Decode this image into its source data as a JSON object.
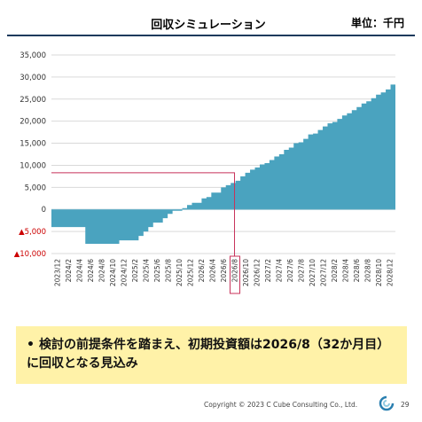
{
  "header": {
    "title": "回収シミュレーション",
    "unit": "単位：千円"
  },
  "chart_data": {
    "type": "area",
    "title": "回収シミュレーション",
    "unit_label": "単位：千円",
    "x_ticks": [
      "2023/12",
      "2024/2",
      "2024/4",
      "2024/6",
      "2024/8",
      "2024/10",
      "2024/12",
      "2025/2",
      "2025/4",
      "2025/6",
      "2025/8",
      "2025/10",
      "2025/12",
      "2026/2",
      "2026/4",
      "2026/6",
      "2026/8",
      "2026/10",
      "2026/12",
      "2027/2",
      "2027/4",
      "2027/6",
      "2027/8",
      "2027/10",
      "2027/12",
      "2028/2",
      "2028/4",
      "2028/6",
      "2028/8",
      "2028/10",
      "2028/12"
    ],
    "y_ticks": [
      {
        "value": 35000,
        "label": "35,000",
        "color": "#333333"
      },
      {
        "value": 30000,
        "label": "30,000",
        "color": "#333333"
      },
      {
        "value": 25000,
        "label": "25,000",
        "color": "#333333"
      },
      {
        "value": 20000,
        "label": "20,000",
        "color": "#333333"
      },
      {
        "value": 15000,
        "label": "15,000",
        "color": "#333333"
      },
      {
        "value": 10000,
        "label": "10,000",
        "color": "#333333"
      },
      {
        "value": 5000,
        "label": "5,000",
        "color": "#333333"
      },
      {
        "value": 0,
        "label": "0",
        "color": "#333333"
      },
      {
        "value": -5000,
        "label": "▲5,000",
        "color": "#cc0000"
      },
      {
        "value": -10000,
        "label": "▲10,000",
        "color": "#cc0000"
      }
    ],
    "ylim": [
      -10000,
      35000
    ],
    "series": [
      {
        "color": "#4aa3bf",
        "values": [
          -4000,
          -4000,
          -4000,
          -4000,
          -4000,
          -4000,
          -4000,
          -7800,
          -7800,
          -7800,
          -7800,
          -7800,
          -7800,
          -7800,
          -7000,
          -7000,
          -7000,
          -7000,
          -6000,
          -5000,
          -4000,
          -3000,
          -3000,
          -2000,
          -1000,
          -300,
          -300,
          300,
          1000,
          1500,
          1500,
          2500,
          2800,
          3800,
          3800,
          5000,
          5500,
          6000,
          6500,
          7500,
          8300,
          9000,
          9500,
          10200,
          10500,
          11200,
          12000,
          12500,
          13500,
          14000,
          15000,
          15200,
          16000,
          17000,
          17200,
          18000,
          18800,
          19500,
          19800,
          20500,
          21300,
          21800,
          22500,
          23200,
          24000,
          24500,
          25200,
          26000,
          26500,
          27200,
          28300
        ]
      }
    ],
    "highlight": {
      "x": "2026/8",
      "y": 8300,
      "color": "#c8325a"
    },
    "grid": true
  },
  "callout": {
    "bullet": "•",
    "text": "検討の前提条件を踏まえ、初期投資額は2026/8（32か月目）に回収となる見込み",
    "background": "#fff2a8"
  },
  "footer": {
    "copyright": "Copyright  © 2023   C Cube Consulting Co., Ltd.",
    "page": "29"
  }
}
